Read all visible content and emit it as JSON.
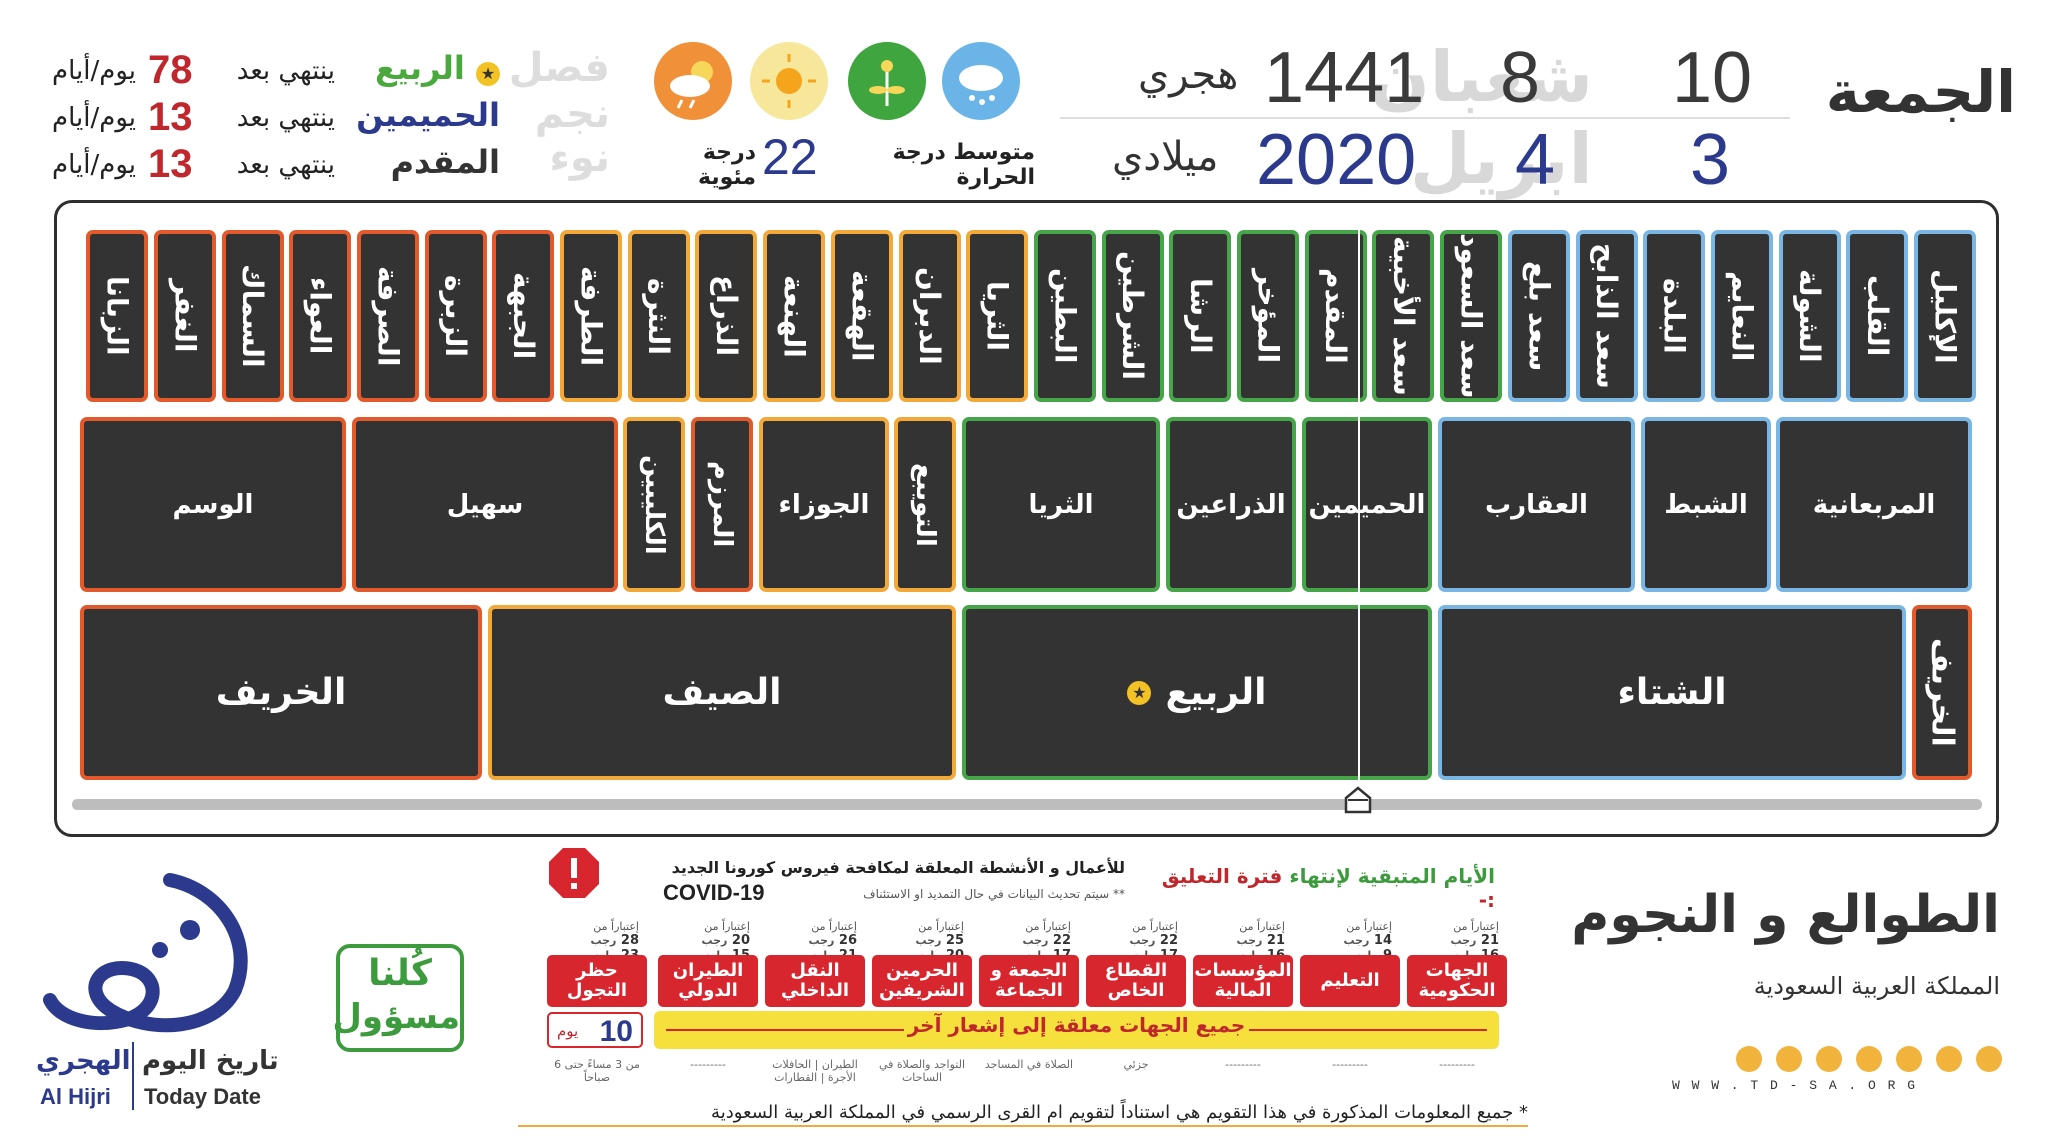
{
  "header": {
    "day_name": "الجمعة",
    "hijri": {
      "day": "10",
      "month_num": "8",
      "month_name": "شعبان",
      "year": "1441",
      "label": "هجري"
    },
    "gregorian": {
      "day": "3",
      "month_num": "4",
      "month_name": "ابريل",
      "year": "2020",
      "label": "ميلادي"
    }
  },
  "weather": {
    "label": "متوسط درجة الحرارة",
    "value": "22",
    "unit": "درجة مئوية",
    "icons": [
      "snow-cloud-icon",
      "plant-icon",
      "sun-icon",
      "sun-cloud-rain-icon"
    ],
    "colors": {
      "snow": "#6ab4e8",
      "plant": "#3fa53f",
      "sun": "#f6d75a",
      "storm": "#f0913a"
    }
  },
  "season_info": {
    "rows": [
      {
        "ghost": "فصل",
        "name": "الربيع",
        "color": "#4aa93c",
        "ends_label": "ينتهي بعد",
        "days": "78",
        "unit": "يوم/أيام"
      },
      {
        "ghost": "نجم",
        "name": "الحميمين",
        "color": "#2b3a8c",
        "ends_label": "ينتهي بعد",
        "days": "13",
        "unit": "يوم/أيام"
      },
      {
        "ghost": "نوء",
        "name": "المقدم",
        "color": "#333333",
        "ends_label": "ينتهي بعد",
        "days": "13",
        "unit": "يوم/أيام"
      }
    ]
  },
  "stars": [
    "الإكليل",
    "القلب",
    "الشولة",
    "النعايم",
    "البلدة",
    "سعد الذابح",
    "سعد بلع",
    "سعد السعود",
    "سعد الأخبية",
    "المقدم",
    "المؤخر",
    "الرشا",
    "الشرطين",
    "البطين",
    "الثريا",
    "الدبران",
    "الهقعة",
    "الهنعة",
    "الذراع",
    "النثرة",
    "الطرفة",
    "الجبهة",
    "الزبرة",
    "الصرفة",
    "العواء",
    "السماك",
    "الغفر",
    "الزبانا"
  ],
  "groups": [
    "المربعانية",
    "الشبط",
    "العقارب",
    "الحميمين",
    "الذراعين",
    "الثريا",
    "التويبع",
    "الجوزاء",
    "المرزم",
    "الكليبين",
    "سهيل",
    "الوسم"
  ],
  "seasons": [
    "الخريف",
    "الشتاء",
    "الربيع",
    "الصيف",
    "الخريف"
  ],
  "covid": {
    "title_part1": "الأيام المتبقية لإنتهاء",
    "title_part2": "فترة التعليق :-",
    "subtitle": "للأعمال و الأنشطة المعلقة لمكافحة فيروس كورونا الجديد",
    "update_note": "** سيتم تحديث البيانات في حال التمديد او الاستئناف",
    "tag": "COVID-19",
    "chips": [
      {
        "label": "الجهات الحكومية",
        "from_label": "إعتباراً من",
        "hijri": "21",
        "hm": "رجب",
        "greg": "16",
        "gm": "مارس",
        "note": "---------"
      },
      {
        "label": "التعليم",
        "from_label": "إعتباراً من",
        "hijri": "14",
        "hm": "رجب",
        "greg": "9",
        "gm": "مارس",
        "note": "---------"
      },
      {
        "label": "المؤسسات المالية",
        "from_label": "إعتباراً من",
        "hijri": "21",
        "hm": "رجب",
        "greg": "16",
        "gm": "مارس",
        "note": "---------"
      },
      {
        "label": "القطاع الخاص",
        "from_label": "إعتباراً من",
        "hijri": "22",
        "hm": "رجب",
        "greg": "17",
        "gm": "مارس",
        "note": "جزئي"
      },
      {
        "label": "الجمعة و الجماعة",
        "from_label": "إعتباراً من",
        "hijri": "22",
        "hm": "رجب",
        "greg": "17",
        "gm": "مارس",
        "note": "الصلاة في المساجد"
      },
      {
        "label": "الحرمين الشريفين",
        "from_label": "إعتباراً من",
        "hijri": "25",
        "hm": "رجب",
        "greg": "20",
        "gm": "مارس",
        "note": "التواجد والصلاة في الساحات"
      },
      {
        "label": "النقل الداخلي",
        "from_label": "إعتباراً من",
        "hijri": "26",
        "hm": "رجب",
        "greg": "21",
        "gm": "مارس",
        "note": "الطيران | الحافلات الأجرة | القطارات"
      },
      {
        "label": "الطيران الدولي",
        "from_label": "إعتباراً من",
        "hijri": "20",
        "hm": "رجب",
        "greg": "15",
        "gm": "مارس",
        "note": "---------"
      },
      {
        "label": "حظر التجول",
        "from_label": "إعتباراً من",
        "hijri": "28",
        "hm": "رجب",
        "greg": "23",
        "gm": "مارس",
        "note": "من 3 مساءً حتى 6 صباحاً"
      }
    ],
    "all_suspended": "جميع الجهات معلقة إلى إشعار آخر",
    "curfew_days": "10",
    "curfew_unit": "يوم"
  },
  "footer": {
    "title": "الطوالع و النجوم",
    "country": "المملكة العربية السعودية",
    "disclaimer": "* جميع المعلومات المذكورة في هذا التقويم هي استناداً لتقويم ام القرى الرسمي في المملكة العربية السعودية",
    "website": "W W W . T D - S A . O R G",
    "brand_ar1": "تاريخ اليوم",
    "brand_ar2": "الهجري",
    "brand_en1": "Today Date",
    "brand_en2": "Al Hijri",
    "badge_line1": "كُلنا",
    "badge_line2": "مسؤول",
    "social_icons": [
      "twitter-icon",
      "snapchat-icon",
      "instagram-icon",
      "facebook-icon",
      "telegram-icon",
      "sms-icon",
      "whatsapp-icon"
    ]
  }
}
